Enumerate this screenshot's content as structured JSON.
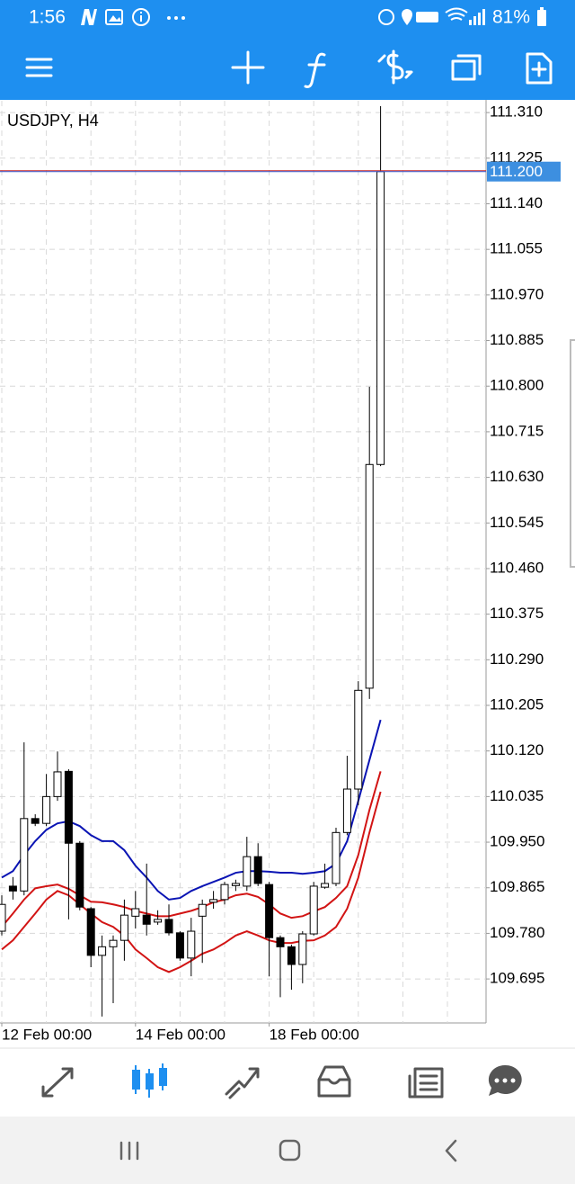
{
  "status_bar": {
    "time": "1:56",
    "battery": "81%"
  },
  "chart_data": {
    "type": "candlestick",
    "title": "USDJPY, H4",
    "categories": [
      "12 Feb 00:00",
      null,
      null,
      null,
      null,
      null,
      null,
      null,
      null,
      null,
      null,
      null,
      "14 Feb 00:00",
      null,
      null,
      null,
      null,
      null,
      null,
      null,
      null,
      null,
      null,
      null,
      "18 Feb 00:00",
      null,
      null,
      null,
      null,
      null,
      null,
      null,
      null,
      null,
      null
    ],
    "open": [
      109.784,
      109.868,
      109.859,
      109.994,
      109.985,
      110.035,
      110.082,
      109.948,
      109.826,
      109.739,
      109.755,
      109.767,
      109.812,
      109.814,
      109.801,
      109.806,
      109.781,
      109.734,
      109.812,
      109.838,
      109.843,
      109.869,
      109.868,
      109.923,
      109.871,
      109.772,
      109.755,
      109.722,
      109.779,
      109.866,
      109.873,
      109.968,
      110.049,
      110.237,
      110.654
    ],
    "high": [
      109.851,
      109.885,
      110.136,
      110.002,
      110.077,
      110.119,
      110.086,
      109.952,
      109.829,
      109.776,
      109.776,
      109.843,
      109.859,
      109.91,
      109.823,
      109.834,
      109.784,
      109.809,
      109.843,
      109.859,
      109.876,
      109.88,
      109.96,
      109.948,
      109.876,
      109.776,
      109.759,
      109.784,
      109.876,
      109.91,
      109.977,
      110.111,
      110.25,
      110.799,
      111.322
    ],
    "low": [
      109.776,
      109.843,
      109.851,
      109.98,
      109.98,
      110.027,
      109.806,
      109.823,
      109.717,
      109.625,
      109.65,
      109.729,
      109.789,
      109.776,
      109.796,
      109.776,
      109.729,
      109.7,
      109.725,
      109.826,
      109.834,
      109.859,
      109.859,
      109.868,
      109.7,
      109.661,
      109.675,
      109.687,
      109.776,
      109.863,
      109.868,
      109.963,
      110.019,
      110.217,
      110.651
    ],
    "close": [
      109.834,
      109.859,
      109.994,
      109.985,
      110.035,
      110.081,
      109.948,
      109.829,
      109.739,
      109.755,
      109.767,
      109.814,
      109.826,
      109.797,
      109.806,
      109.781,
      109.734,
      109.784,
      109.834,
      109.843,
      109.871,
      109.873,
      109.923,
      109.873,
      109.772,
      109.755,
      109.722,
      109.779,
      109.868,
      109.873,
      109.968,
      110.049,
      110.233,
      110.654,
      111.2
    ],
    "up_color": "#ffffff",
    "down_color": "#000000",
    "lines": [
      {
        "color": "#0a14b4",
        "values": [
          109.884,
          109.896,
          109.926,
          109.952,
          109.973,
          109.985,
          109.989,
          109.98,
          109.963,
          109.952,
          109.952,
          109.935,
          109.906,
          109.884,
          109.859,
          109.843,
          109.846,
          109.859,
          109.868,
          109.876,
          109.884,
          109.893,
          109.896,
          109.896,
          109.895,
          109.893,
          109.893,
          109.891,
          109.893,
          109.896,
          109.91,
          109.952,
          110.027,
          110.103,
          110.178
        ]
      },
      {
        "color": "#d21414",
        "values": [
          109.792,
          109.817,
          109.843,
          109.864,
          109.868,
          109.871,
          109.863,
          109.851,
          109.839,
          109.838,
          109.834,
          109.829,
          109.822,
          109.817,
          109.812,
          109.812,
          109.817,
          109.822,
          109.829,
          109.838,
          109.843,
          109.851,
          109.854,
          109.848,
          109.834,
          109.817,
          109.809,
          109.812,
          109.821,
          109.829,
          109.846,
          109.868,
          109.926,
          110.01,
          110.082
        ]
      },
      {
        "color": "#d21414",
        "values": [
          109.75,
          109.767,
          109.792,
          109.817,
          109.843,
          109.859,
          109.851,
          109.834,
          109.817,
          109.801,
          109.792,
          109.776,
          109.75,
          109.734,
          109.717,
          109.708,
          109.717,
          109.729,
          109.742,
          109.75,
          109.762,
          109.776,
          109.784,
          109.776,
          109.767,
          109.762,
          109.762,
          109.766,
          109.767,
          109.776,
          109.792,
          109.826,
          109.884,
          109.968,
          110.044
        ]
      }
    ],
    "current_price": {
      "value": 111.2,
      "label": "111.200"
    },
    "ylim": [
      109.613,
      111.332
    ],
    "yticks": [
      109.695,
      {
        "value": 109.78,
        "label": "109.780"
      },
      109.865,
      {
        "value": 109.95,
        "label": "109.950"
      },
      110.035,
      {
        "value": 110.12,
        "label": "110.120"
      },
      110.205,
      {
        "value": 110.29,
        "label": "110.290"
      },
      110.375,
      {
        "value": 110.46,
        "label": "110.460"
      },
      110.545,
      {
        "value": 110.63,
        "label": "110.630"
      },
      110.715,
      {
        "value": 110.8,
        "label": "110.800"
      },
      110.885,
      {
        "value": 110.97,
        "label": "110.970"
      },
      111.055,
      {
        "value": 111.14,
        "label": "111.140"
      },
      111.225,
      {
        "value": 111.31,
        "label": "111.310"
      }
    ],
    "grid": true
  }
}
